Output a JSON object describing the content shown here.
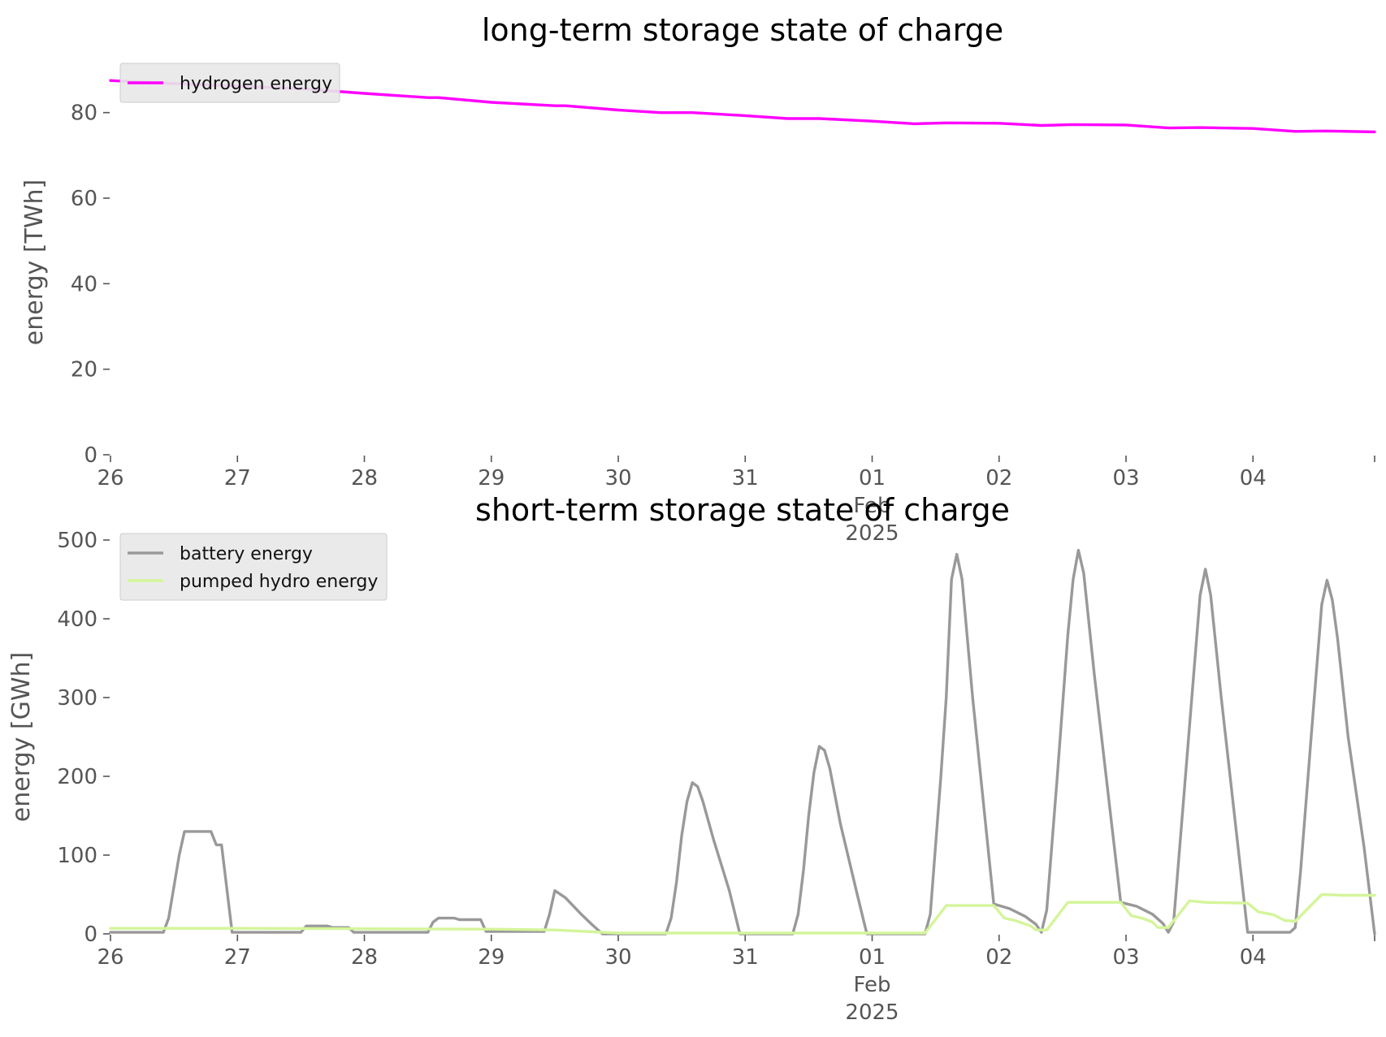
{
  "chart_data": [
    {
      "type": "line",
      "title": "long-term storage state of charge",
      "xlabel": "",
      "ylabel": "energy [TWh]",
      "ylim": [
        0,
        90
      ],
      "xlim": [
        "2025-01-26 00:00",
        "2025-02-04 23:00"
      ],
      "yticks": [
        0,
        20,
        40,
        60,
        80
      ],
      "xticks": [
        {
          "label": "26",
          "x": "2025-01-26"
        },
        {
          "label": "27",
          "x": "2025-01-27"
        },
        {
          "label": "28",
          "x": "2025-01-28"
        },
        {
          "label": "29",
          "x": "2025-01-29"
        },
        {
          "label": "30",
          "x": "2025-01-30"
        },
        {
          "label": "31",
          "x": "2025-01-31"
        },
        {
          "label": "01\nFeb\n2025",
          "x": "2025-02-01"
        },
        {
          "label": "02",
          "x": "2025-02-02"
        },
        {
          "label": "03",
          "x": "2025-02-03"
        },
        {
          "label": "04",
          "x": "2025-02-04"
        }
      ],
      "grid": false,
      "legend_position": "upper left",
      "series": [
        {
          "name": "hydrogen energy",
          "color": "#ff00ff",
          "points": [
            [
              "2025-01-26 00:00",
              87.5
            ],
            [
              "2025-01-26 12:00",
              86.8
            ],
            [
              "2025-01-27 00:00",
              86.2
            ],
            [
              "2025-01-27 12:00",
              85.6
            ],
            [
              "2025-01-28 00:00",
              84.5
            ],
            [
              "2025-01-28 12:00",
              83.5
            ],
            [
              "2025-01-28 14:00",
              83.5
            ],
            [
              "2025-01-29 00:00",
              82.4
            ],
            [
              "2025-01-29 12:00",
              81.6
            ],
            [
              "2025-01-29 14:00",
              81.6
            ],
            [
              "2025-01-30 00:00",
              80.6
            ],
            [
              "2025-01-30 08:00",
              80.0
            ],
            [
              "2025-01-30 14:00",
              80.0
            ],
            [
              "2025-01-31 00:00",
              79.3
            ],
            [
              "2025-01-31 08:00",
              78.6
            ],
            [
              "2025-01-31 14:00",
              78.6
            ],
            [
              "2025-02-01 00:00",
              78.0
            ],
            [
              "2025-02-01 08:00",
              77.4
            ],
            [
              "2025-02-01 14:00",
              77.6
            ],
            [
              "2025-02-02 00:00",
              77.5
            ],
            [
              "2025-02-02 08:00",
              77.0
            ],
            [
              "2025-02-02 14:00",
              77.2
            ],
            [
              "2025-02-03 00:00",
              77.1
            ],
            [
              "2025-02-03 08:00",
              76.4
            ],
            [
              "2025-02-03 14:00",
              76.5
            ],
            [
              "2025-02-04 00:00",
              76.3
            ],
            [
              "2025-02-04 08:00",
              75.6
            ],
            [
              "2025-02-04 14:00",
              75.7
            ],
            [
              "2025-02-04 23:00",
              75.5
            ]
          ]
        }
      ]
    },
    {
      "type": "line",
      "title": "short-term storage state of charge",
      "xlabel": "",
      "ylabel": "energy [GWh]",
      "ylim": [
        0,
        500
      ],
      "xlim": [
        "2025-01-26 00:00",
        "2025-02-04 23:00"
      ],
      "yticks": [
        0,
        100,
        200,
        300,
        400,
        500
      ],
      "xticks": [
        {
          "label": "26",
          "x": "2025-01-26"
        },
        {
          "label": "27",
          "x": "2025-01-27"
        },
        {
          "label": "28",
          "x": "2025-01-28"
        },
        {
          "label": "29",
          "x": "2025-01-29"
        },
        {
          "label": "30",
          "x": "2025-01-30"
        },
        {
          "label": "31",
          "x": "2025-01-31"
        },
        {
          "label": "01\nFeb\n2025",
          "x": "2025-02-01"
        },
        {
          "label": "02",
          "x": "2025-02-02"
        },
        {
          "label": "03",
          "x": "2025-02-03"
        },
        {
          "label": "04",
          "x": "2025-02-04"
        }
      ],
      "grid": false,
      "legend_position": "upper left",
      "series": [
        {
          "name": "battery energy",
          "color": "#999999",
          "points": [
            [
              "2025-01-26 00:00",
              2
            ],
            [
              "2025-01-26 10:00",
              2
            ],
            [
              "2025-01-26 11:00",
              20
            ],
            [
              "2025-01-26 13:00",
              100
            ],
            [
              "2025-01-26 14:00",
              130
            ],
            [
              "2025-01-26 19:00",
              130
            ],
            [
              "2025-01-26 20:00",
              113
            ],
            [
              "2025-01-26 21:00",
              113
            ],
            [
              "2025-01-26 23:00",
              2
            ],
            [
              "2025-01-27 12:00",
              2
            ],
            [
              "2025-01-27 13:00",
              10
            ],
            [
              "2025-01-27 17:00",
              10
            ],
            [
              "2025-01-27 18:00",
              8
            ],
            [
              "2025-01-27 21:00",
              8
            ],
            [
              "2025-01-27 22:00",
              2
            ],
            [
              "2025-01-28 12:00",
              2
            ],
            [
              "2025-01-28 13:00",
              15
            ],
            [
              "2025-01-28 14:00",
              20
            ],
            [
              "2025-01-28 17:00",
              20
            ],
            [
              "2025-01-28 18:00",
              18
            ],
            [
              "2025-01-28 22:00",
              18
            ],
            [
              "2025-01-28 23:00",
              3
            ],
            [
              "2025-01-29 10:00",
              3
            ],
            [
              "2025-01-29 11:00",
              25
            ],
            [
              "2025-01-29 12:00",
              55
            ],
            [
              "2025-01-29 14:00",
              46
            ],
            [
              "2025-01-29 17:00",
              25
            ],
            [
              "2025-01-29 19:00",
              12
            ],
            [
              "2025-01-29 21:00",
              0
            ],
            [
              "2025-01-30 09:00",
              0
            ],
            [
              "2025-01-30 10:00",
              20
            ],
            [
              "2025-01-30 11:00",
              65
            ],
            [
              "2025-01-30 12:00",
              125
            ],
            [
              "2025-01-30 13:00",
              168
            ],
            [
              "2025-01-30 14:00",
              192
            ],
            [
              "2025-01-30 15:00",
              187
            ],
            [
              "2025-01-30 16:00",
              168
            ],
            [
              "2025-01-30 18:00",
              120
            ],
            [
              "2025-01-30 21:00",
              55
            ],
            [
              "2025-01-30 23:00",
              0
            ],
            [
              "2025-01-31 09:00",
              0
            ],
            [
              "2025-01-31 10:00",
              25
            ],
            [
              "2025-01-31 11:00",
              80
            ],
            [
              "2025-01-31 12:00",
              150
            ],
            [
              "2025-01-31 13:00",
              205
            ],
            [
              "2025-01-31 14:00",
              238
            ],
            [
              "2025-01-31 15:00",
              233
            ],
            [
              "2025-01-31 16:00",
              210
            ],
            [
              "2025-01-31 18:00",
              140
            ],
            [
              "2025-01-31 21:00",
              55
            ],
            [
              "2025-01-31 23:00",
              0
            ],
            [
              "2025-02-01 10:00",
              0
            ],
            [
              "2025-02-01 11:00",
              25
            ],
            [
              "2025-02-01 13:00",
              200
            ],
            [
              "2025-02-01 14:00",
              300
            ],
            [
              "2025-02-01 15:00",
              450
            ],
            [
              "2025-02-01 16:00",
              482
            ],
            [
              "2025-02-01 17:00",
              450
            ],
            [
              "2025-02-01 19:00",
              300
            ],
            [
              "2025-02-01 23:00",
              38
            ],
            [
              "2025-02-02 02:00",
              32
            ],
            [
              "2025-02-02 05:00",
              22
            ],
            [
              "2025-02-02 07:00",
              12
            ],
            [
              "2025-02-02 08:00",
              2
            ],
            [
              "2025-02-02 09:00",
              30
            ],
            [
              "2025-02-02 11:00",
              200
            ],
            [
              "2025-02-02 13:00",
              380
            ],
            [
              "2025-02-02 14:00",
              450
            ],
            [
              "2025-02-02 15:00",
              487
            ],
            [
              "2025-02-02 16:00",
              458
            ],
            [
              "2025-02-02 18:00",
              330
            ],
            [
              "2025-02-02 23:00",
              40
            ],
            [
              "2025-02-03 02:00",
              35
            ],
            [
              "2025-02-03 05:00",
              25
            ],
            [
              "2025-02-03 07:00",
              13
            ],
            [
              "2025-02-03 08:00",
              2
            ],
            [
              "2025-02-03 09:00",
              15
            ],
            [
              "2025-02-03 11:00",
              180
            ],
            [
              "2025-02-03 14:00",
              430
            ],
            [
              "2025-02-03 15:00",
              463
            ],
            [
              "2025-02-03 16:00",
              430
            ],
            [
              "2025-02-03 18:00",
              300
            ],
            [
              "2025-02-03 23:00",
              2
            ],
            [
              "2025-02-04 07:00",
              2
            ],
            [
              "2025-02-04 08:00",
              8
            ],
            [
              "2025-02-04 09:00",
              80
            ],
            [
              "2025-02-04 11:00",
              250
            ],
            [
              "2025-02-04 13:00",
              418
            ],
            [
              "2025-02-04 14:00",
              449
            ],
            [
              "2025-02-04 15:00",
              424
            ],
            [
              "2025-02-04 16:00",
              375
            ],
            [
              "2025-02-04 18:00",
              250
            ],
            [
              "2025-02-04 21:00",
              110
            ],
            [
              "2025-02-04 23:00",
              0
            ]
          ]
        },
        {
          "name": "pumped hydro energy",
          "color": "#d4f59a",
          "points": [
            [
              "2025-01-26 00:00",
              7
            ],
            [
              "2025-01-27 00:00",
              7
            ],
            [
              "2025-01-28 00:00",
              6.5
            ],
            [
              "2025-01-29 00:00",
              6
            ],
            [
              "2025-01-29 12:00",
              5
            ],
            [
              "2025-01-30 00:00",
              1
            ],
            [
              "2025-02-01 10:00",
              1
            ],
            [
              "2025-02-01 14:00",
              36
            ],
            [
              "2025-02-01 23:00",
              36
            ],
            [
              "2025-02-02 01:00",
              20
            ],
            [
              "2025-02-02 03:00",
              17
            ],
            [
              "2025-02-02 06:00",
              10
            ],
            [
              "2025-02-02 07:00",
              5
            ],
            [
              "2025-02-02 09:00",
              5
            ],
            [
              "2025-02-02 13:00",
              40
            ],
            [
              "2025-02-02 23:00",
              40
            ],
            [
              "2025-02-03 01:00",
              23
            ],
            [
              "2025-02-03 03:00",
              20
            ],
            [
              "2025-02-03 05:00",
              15
            ],
            [
              "2025-02-03 06:00",
              8
            ],
            [
              "2025-02-03 08:00",
              8
            ],
            [
              "2025-02-03 12:00",
              42
            ],
            [
              "2025-02-03 15:00",
              40
            ],
            [
              "2025-02-03 23:00",
              39
            ],
            [
              "2025-02-04 01:00",
              28
            ],
            [
              "2025-02-04 04:00",
              24
            ],
            [
              "2025-02-04 06:00",
              17
            ],
            [
              "2025-02-04 08:00",
              16
            ],
            [
              "2025-02-04 13:00",
              50
            ],
            [
              "2025-02-04 17:00",
              49
            ],
            [
              "2025-02-04 23:00",
              49
            ]
          ]
        }
      ]
    }
  ]
}
